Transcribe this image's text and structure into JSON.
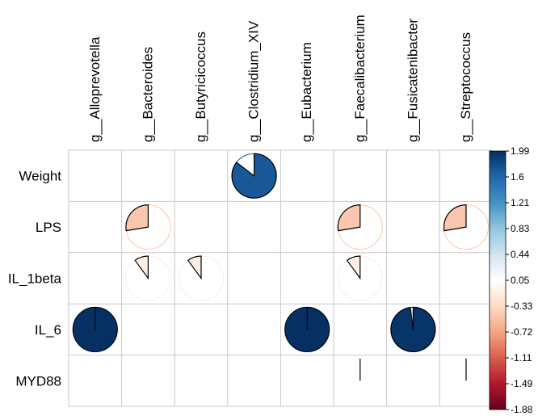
{
  "chart_data": {
    "type": "heatmap",
    "subtype": "correlation-pie",
    "columns": [
      "g__Alloprevotella",
      "g__Bacteroides",
      "g__Butyricicoccus",
      "g__Clostridium_XIV",
      "g__Eubacterium",
      "g__Faecalibacterium",
      "g__Fusicatenibacter",
      "g__Streptococcus"
    ],
    "rows": [
      "Weight",
      "LPS",
      "IL_1beta",
      "IL_6",
      "MYD88"
    ],
    "cells": [
      {
        "row": 0,
        "col": 3,
        "value": 1.7
      },
      {
        "row": 1,
        "col": 1,
        "value": -0.55
      },
      {
        "row": 1,
        "col": 5,
        "value": -0.55
      },
      {
        "row": 1,
        "col": 7,
        "value": -0.55
      },
      {
        "row": 2,
        "col": 1,
        "value": -0.2
      },
      {
        "row": 2,
        "col": 2,
        "value": -0.2
      },
      {
        "row": 2,
        "col": 5,
        "value": -0.2
      },
      {
        "row": 3,
        "col": 0,
        "value": 1.99
      },
      {
        "row": 3,
        "col": 4,
        "value": 1.99
      },
      {
        "row": 3,
        "col": 6,
        "value": 1.95
      },
      {
        "row": 4,
        "col": 5,
        "value": 0
      },
      {
        "row": 4,
        "col": 7,
        "value": 0
      }
    ],
    "colorbar": {
      "min": -1.88,
      "max": 1.99,
      "ticks": [
        "1.99",
        "1.6",
        "1.21",
        "0.83",
        "0.44",
        "0.05",
        "-0.33",
        "-0.72",
        "-1.11",
        "-1.49",
        "-1.88"
      ],
      "colors": [
        "#67001F",
        "#B2182B",
        "#D6604D",
        "#F4A582",
        "#FDDBC7",
        "#FFFFFF",
        "#D1E5F0",
        "#92C5DE",
        "#4393C3",
        "#2166AC",
        "#053061"
      ]
    }
  }
}
